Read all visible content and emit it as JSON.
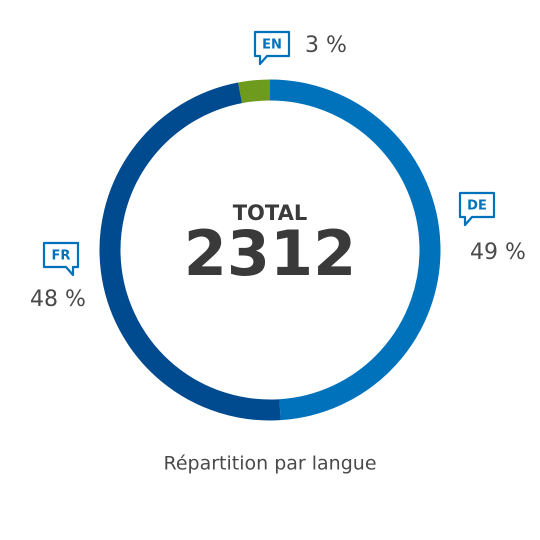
{
  "chart_data": {
    "type": "donut",
    "title": "Répartition par langue",
    "center_label": "TOTAL",
    "total": 2312,
    "categories": [
      "EN",
      "DE",
      "FR"
    ],
    "values": [
      3,
      49,
      48
    ],
    "value_labels": [
      "3 %",
      "49 %",
      "48 %"
    ],
    "colors": [
      "#6e9a1e",
      "#0072bc",
      "#004a8f"
    ]
  }
}
